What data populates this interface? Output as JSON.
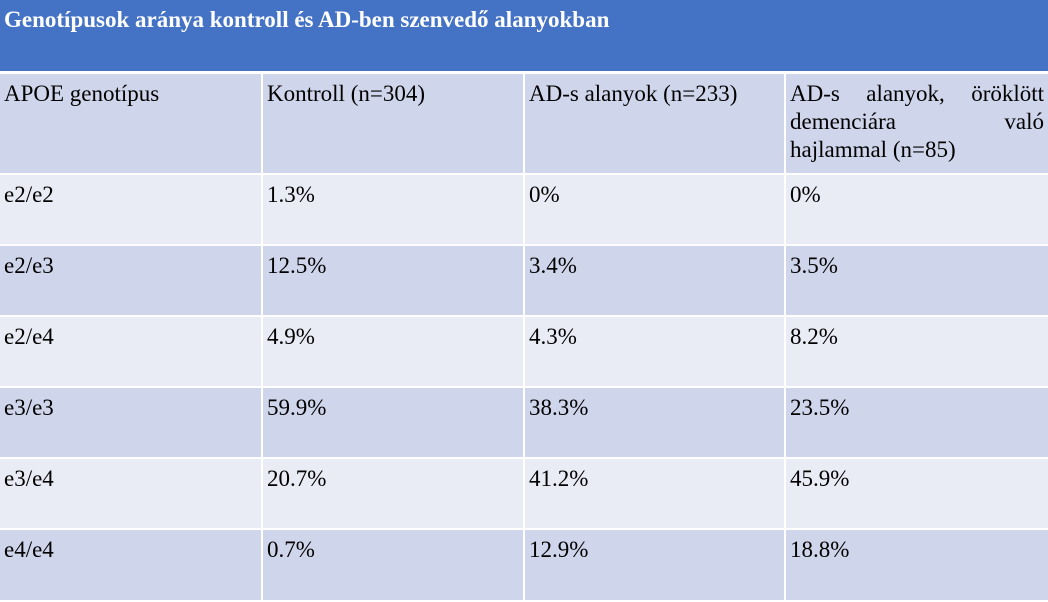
{
  "title": "Genotípusok aránya kontroll és AD-ben szenvedő alanyokban",
  "headers": [
    "APOE genotípus",
    "Kontroll (n=304)",
    "AD-s alanyok (n=233)",
    "AD-s alanyok, öröklött demenciára való hajlammal (n=85)"
  ],
  "rows": [
    [
      "e2/e2",
      "1.3%",
      "0%",
      "0%"
    ],
    [
      "e2/e3",
      "12.5%",
      "3.4%",
      "3.5%"
    ],
    [
      "e2/e4",
      "4.9%",
      "4.3%",
      "8.2%"
    ],
    [
      "e3/e3",
      "59.9%",
      "38.3%",
      "23.5%"
    ],
    [
      "e3/e4",
      "20.7%",
      "41.2%",
      "45.9%"
    ],
    [
      "e4/e4",
      "0.7%",
      "12.9%",
      "18.8%"
    ]
  ],
  "colors": {
    "title_bg": "#4472c4",
    "row_dark": "#cfd5ea",
    "row_light": "#e9ebf5"
  }
}
